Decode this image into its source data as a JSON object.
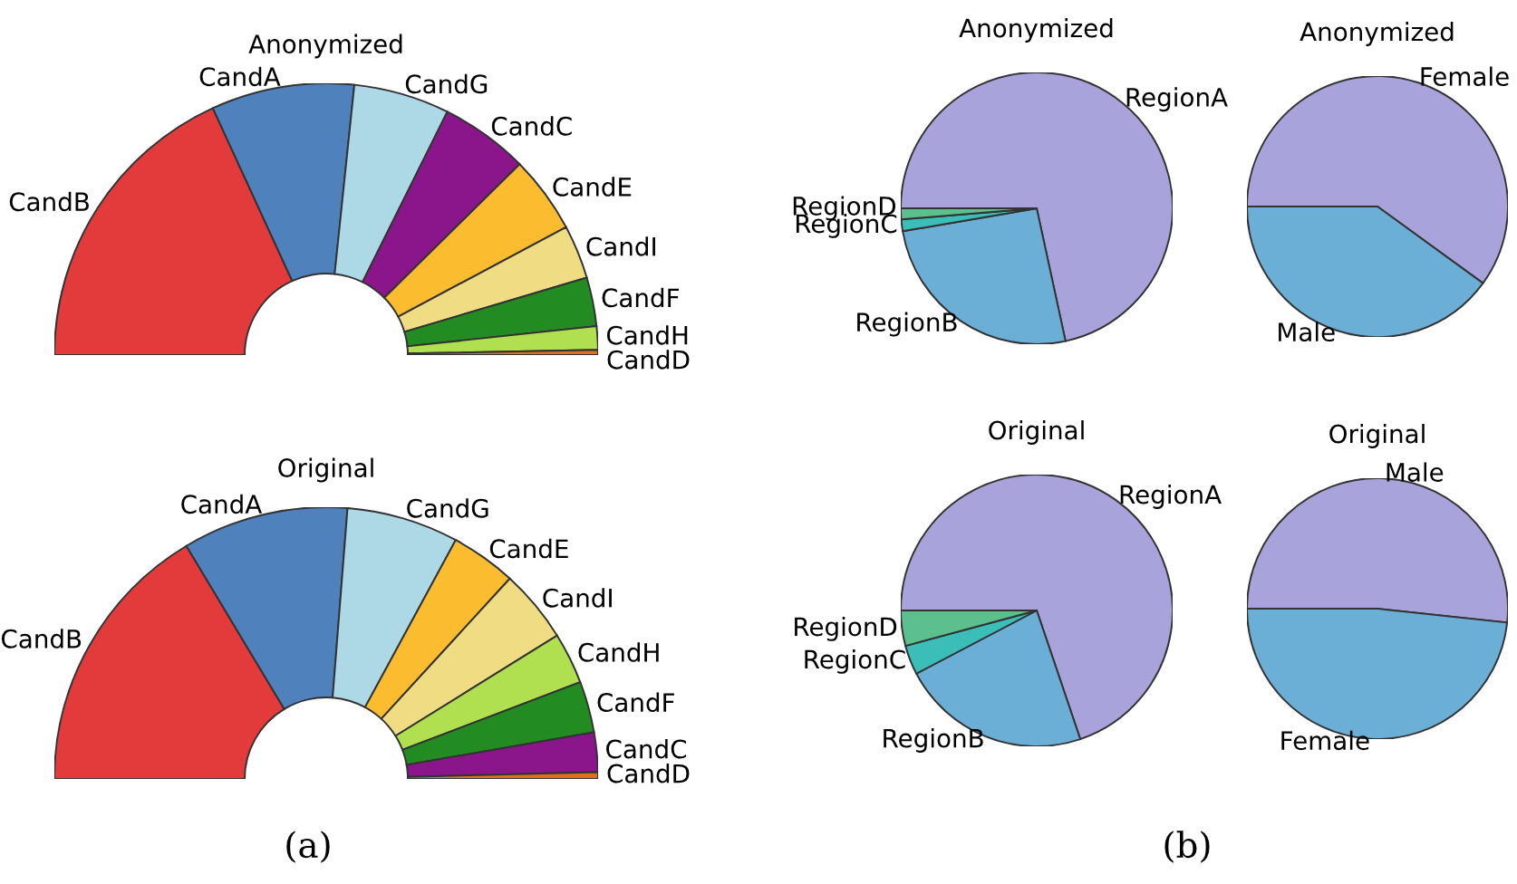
{
  "chart_data": [
    {
      "type": "donut",
      "title": "Anonymized",
      "annotations": [
        "(a)"
      ],
      "categories": [
        "CandB",
        "CandA",
        "CandG",
        "CandC",
        "CandE",
        "CandI",
        "CandF",
        "CandH",
        "CandD"
      ],
      "values": [
        36.3,
        17,
        11.4,
        10.5,
        9.2,
        6.4,
        5.8,
        2.8,
        0.6
      ],
      "colors": [
        "#e33b3b",
        "#4f81bd",
        "#add8e6",
        "#8b168b",
        "#fbbc2f",
        "#f0dc82",
        "#228b22",
        "#b0e050",
        "#e07020"
      ]
    },
    {
      "type": "donut",
      "title": "Original",
      "categories": [
        "CandB",
        "CandA",
        "CandG",
        "CandE",
        "CandI",
        "CandH",
        "CandF",
        "CandC",
        "CandD"
      ],
      "values": [
        32.8,
        19.7,
        13.3,
        7.8,
        8.7,
        6.1,
        6.1,
        4.7,
        0.8
      ],
      "colors": [
        "#e33b3b",
        "#4f81bd",
        "#add8e6",
        "#fbbc2f",
        "#f0dc82",
        "#b0e050",
        "#228b22",
        "#8b168b",
        "#e07020"
      ]
    },
    {
      "type": "pie",
      "title": "Anonymized",
      "annotations": [
        "(b)"
      ],
      "categories": [
        "RegionA",
        "RegionB",
        "RegionC",
        "RegionD"
      ],
      "values": [
        71.6,
        25.7,
        1.4,
        1.3
      ],
      "colors": [
        "#a9a3db",
        "#6baed6",
        "#3bbdb8",
        "#5cbf8e"
      ]
    },
    {
      "type": "pie",
      "title": "Anonymized",
      "categories": [
        "Female",
        "Male"
      ],
      "values": [
        60,
        40
      ],
      "colors": [
        "#a9a3db",
        "#6baed6"
      ]
    },
    {
      "type": "pie",
      "title": "Original",
      "categories": [
        "RegionA",
        "RegionB",
        "RegionC",
        "RegionD"
      ],
      "values": [
        69.8,
        22.5,
        3.5,
        4.2
      ],
      "colors": [
        "#a9a3db",
        "#6baed6",
        "#3bbdb8",
        "#5cbf8e"
      ]
    },
    {
      "type": "pie",
      "title": "Original",
      "categories": [
        "Male",
        "Female"
      ],
      "values": [
        51.7,
        48.3
      ],
      "colors": [
        "#a9a3db",
        "#6baed6"
      ]
    }
  ]
}
